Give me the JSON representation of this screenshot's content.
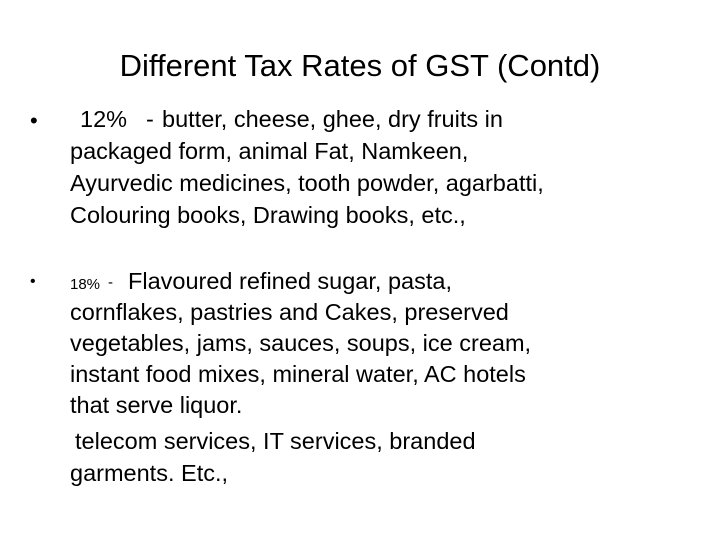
{
  "title": "Different Tax Rates of GST (Contd)",
  "bullets": [
    {
      "rate": "12%",
      "dash": "-",
      "lines": [
        "butter, cheese, ghee, dry fruits in",
        "packaged form, animal Fat, Namkeen,",
        "Ayurvedic medicines, tooth powder, agarbatti,",
        "Colouring books, Drawing books, etc.,"
      ]
    },
    {
      "rate": "18%",
      "dash": "-",
      "lines": [
        "Flavoured refined sugar, pasta,",
        "cornflakes, pastries and Cakes, preserved",
        "vegetables, jams, sauces, soups, ice cream,",
        "instant food mixes, mineral water, AC hotels",
        "that serve liquor.",
        "telecom services, IT services, branded",
        "garments. Etc.,"
      ]
    }
  ]
}
